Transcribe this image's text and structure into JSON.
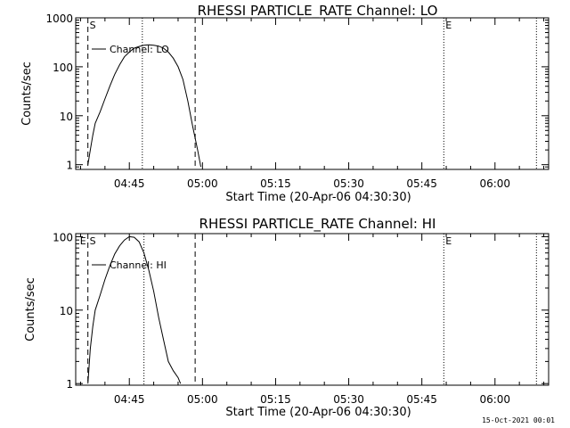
{
  "footer_date": "15-Oct-2021 00:01",
  "chart_data": [
    {
      "type": "line",
      "title": "RHESSI PARTICLE_RATE Channel: LO",
      "xlabel": "Start Time (20-Apr-06 04:30:30)",
      "ylabel": "Counts/sec",
      "yscale": "log",
      "xlim": [
        "04:34:00",
        "06:11:00"
      ],
      "ylim": [
        0.8,
        1000
      ],
      "yticks": [
        "1",
        "10",
        "100",
        "1000"
      ],
      "xticks": [
        "04:45",
        "05:00",
        "05:15",
        "05:30",
        "05:45",
        "06:00"
      ],
      "grid": false,
      "legend_position": "top-left",
      "series": [
        {
          "name": "Channel: LO",
          "x": [
            "04:36:30",
            "04:37:00",
            "04:37:30",
            "04:38:00",
            "04:39:00",
            "04:40:00",
            "04:41:00",
            "04:42:00",
            "04:43:00",
            "04:44:00",
            "04:45:00",
            "04:46:00",
            "04:47:00",
            "04:48:00",
            "04:49:00",
            "04:50:00",
            "04:51:00",
            "04:52:00",
            "04:53:00",
            "04:54:00",
            "04:55:00",
            "04:56:00",
            "04:57:00",
            "04:58:00",
            "04:59:00",
            "04:59:40"
          ],
          "values": [
            1,
            2,
            4,
            7,
            12,
            22,
            40,
            70,
            110,
            160,
            200,
            240,
            260,
            275,
            280,
            275,
            265,
            240,
            200,
            150,
            100,
            55,
            20,
            6,
            2,
            0.9
          ]
        }
      ],
      "markers": [
        {
          "label": "S",
          "time": "04:36:30",
          "style": "dashed"
        },
        {
          "label": "",
          "time": "04:47:40",
          "style": "dotted"
        },
        {
          "label": "",
          "time": "04:58:30",
          "style": "dashed"
        },
        {
          "label": "E",
          "time": "05:49:30",
          "style": "dotted"
        },
        {
          "label": "",
          "time": "06:08:30",
          "style": "dotted"
        }
      ]
    },
    {
      "type": "line",
      "title": "RHESSI PARTICLE_RATE Channel: HI",
      "xlabel": "Start Time (20-Apr-06 04:30:30)",
      "ylabel": "Counts/sec",
      "yscale": "log",
      "xlim": [
        "04:34:00",
        "06:11:00"
      ],
      "ylim": [
        0.95,
        110
      ],
      "yticks": [
        "1",
        "10",
        "100"
      ],
      "xticks": [
        "04:45",
        "05:00",
        "05:15",
        "05:30",
        "05:45",
        "06:00"
      ],
      "grid": false,
      "legend_position": "top-left",
      "series": [
        {
          "name": "Channel: HI",
          "x": [
            "04:36:30",
            "04:37:00",
            "04:37:30",
            "04:38:00",
            "04:39:00",
            "04:40:00",
            "04:41:00",
            "04:42:00",
            "04:43:00",
            "04:44:00",
            "04:45:00",
            "04:46:00",
            "04:47:00",
            "04:48:00",
            "04:49:00",
            "04:50:00",
            "04:51:00",
            "04:52:00",
            "04:53:00",
            "04:54:00",
            "04:55:00",
            "04:55:30"
          ],
          "values": [
            1,
            3,
            6,
            10,
            16,
            26,
            40,
            58,
            75,
            90,
            100,
            98,
            85,
            60,
            35,
            18,
            8,
            4,
            2,
            1.5,
            1.2,
            1.0
          ]
        }
      ],
      "markers": [
        {
          "label": "E",
          "time": "04:34:30",
          "style": "none"
        },
        {
          "label": "S",
          "time": "04:36:30",
          "style": "dashed"
        },
        {
          "label": "",
          "time": "04:48:00",
          "style": "dotted"
        },
        {
          "label": "",
          "time": "04:58:30",
          "style": "dashed"
        },
        {
          "label": "E",
          "time": "05:49:30",
          "style": "dotted"
        },
        {
          "label": "",
          "time": "06:08:30",
          "style": "dotted"
        }
      ]
    }
  ]
}
